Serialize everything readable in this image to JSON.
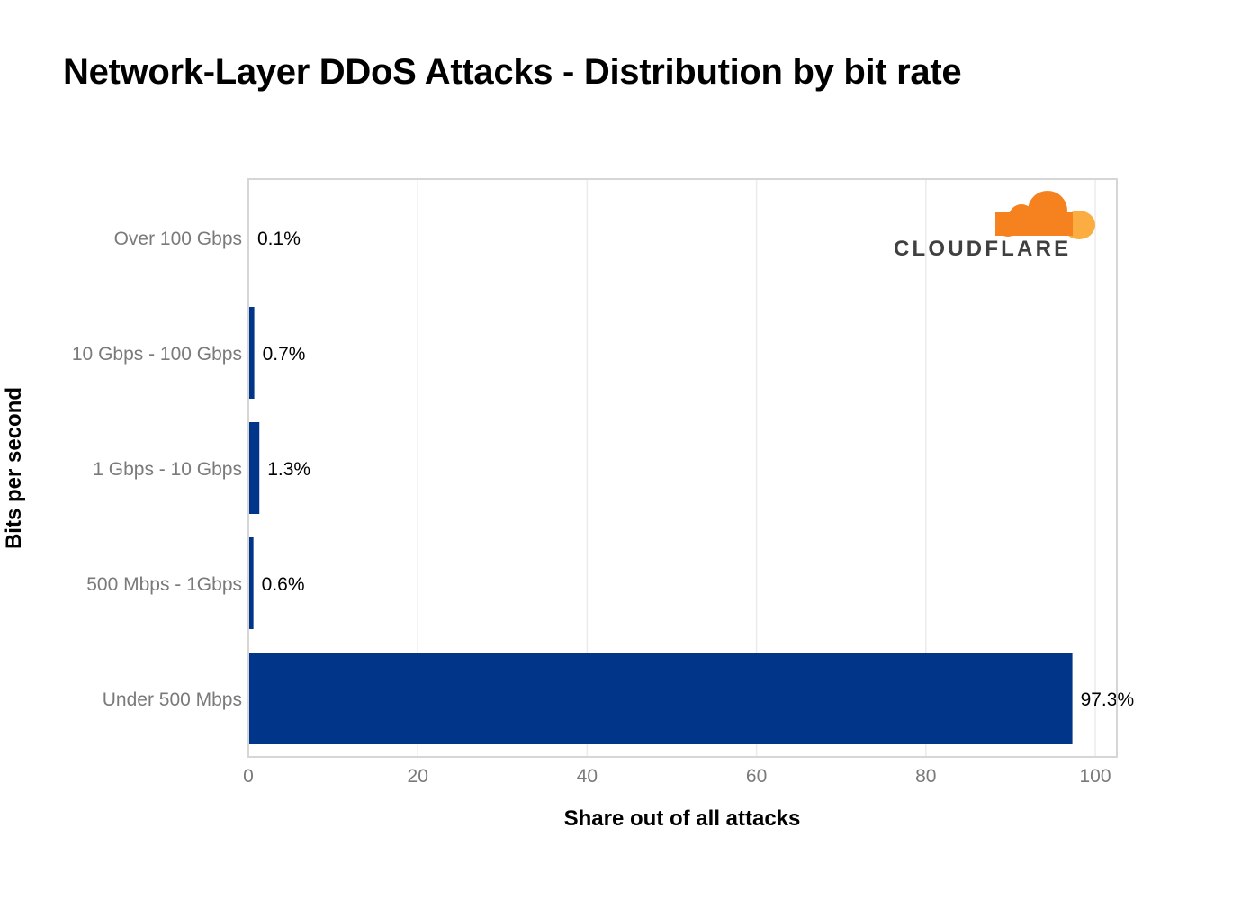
{
  "chart_data": {
    "type": "bar",
    "orientation": "horizontal",
    "title": "Network-Layer DDoS Attacks - Distribution by bit rate",
    "xlabel": "Share out of all attacks",
    "ylabel": "Bits per second",
    "categories": [
      "Over 100 Gbps",
      "10 Gbps - 100 Gbps",
      "1 Gbps - 10 Gbps",
      "500 Mbps - 1Gbps",
      "Under 500 Mbps"
    ],
    "values": [
      0.1,
      0.7,
      1.3,
      0.6,
      97.3
    ],
    "data_labels": [
      "0.1%",
      "0.7%",
      "1.3%",
      "0.6%",
      "97.3%"
    ],
    "xlim": [
      0,
      100
    ],
    "xticks": [
      0,
      20,
      40,
      60,
      80,
      100
    ],
    "grid": true,
    "bar_color": "#00358a"
  },
  "logo": {
    "text": "CLOUDFLARE",
    "color_primary": "#f6821f",
    "color_secondary": "#fbad41"
  }
}
